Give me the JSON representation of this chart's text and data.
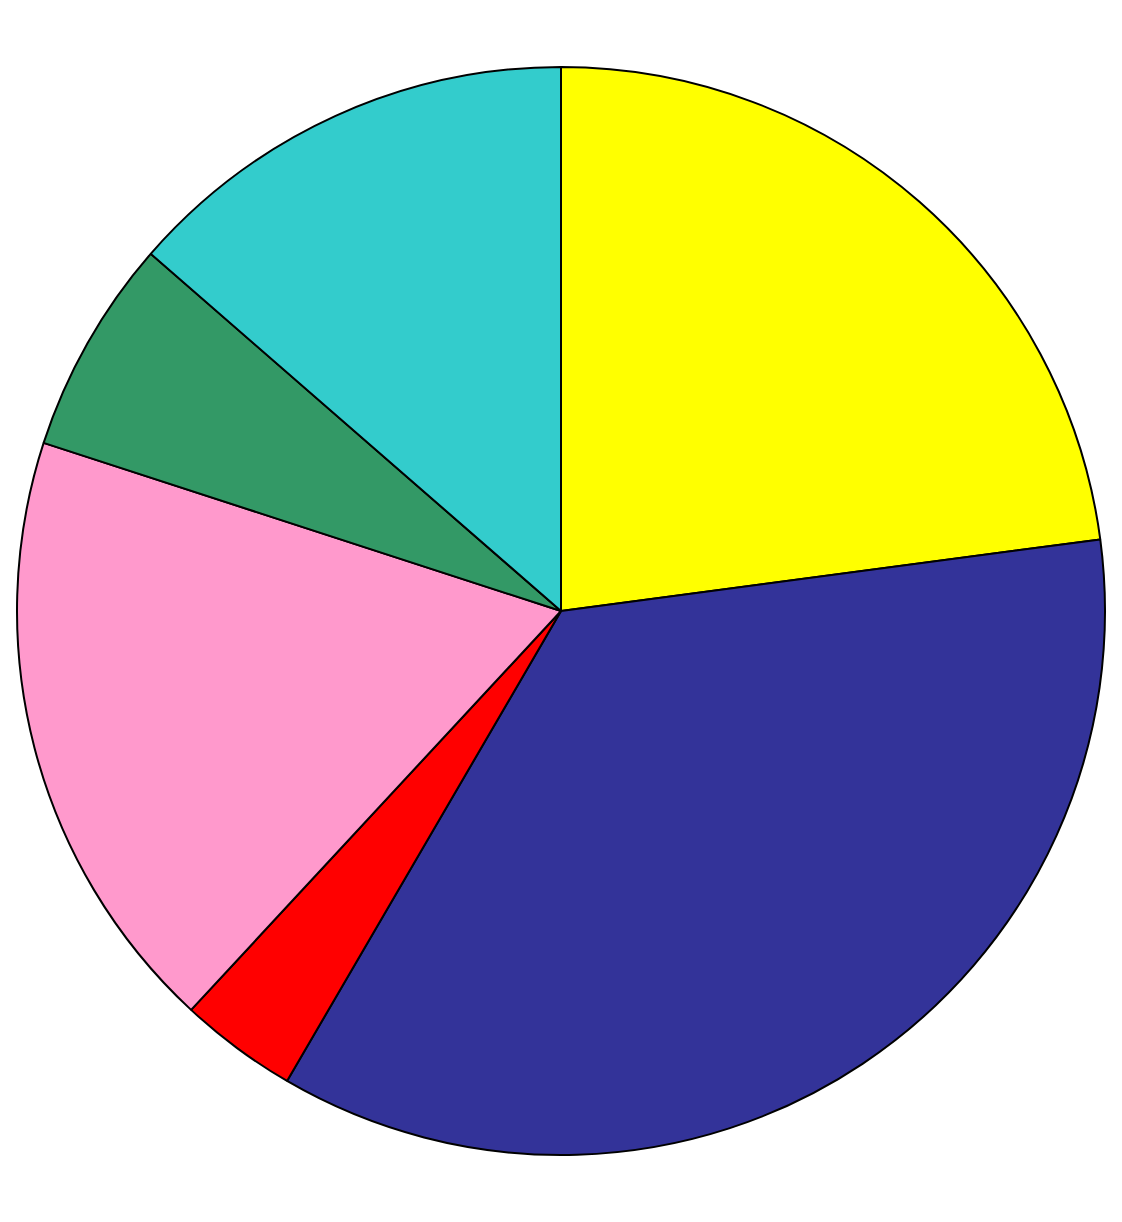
{
  "chart_data": {
    "type": "pie",
    "categories": [
      null,
      null,
      null,
      null,
      null,
      null
    ],
    "values": [
      22.9,
      35.5,
      3.5,
      18.1,
      6.4,
      13.6
    ],
    "colors": [
      "#ffff00",
      "#333399",
      "#ff0000",
      "#ff99cc",
      "#339966",
      "#33cccc"
    ],
    "legend": false
  }
}
